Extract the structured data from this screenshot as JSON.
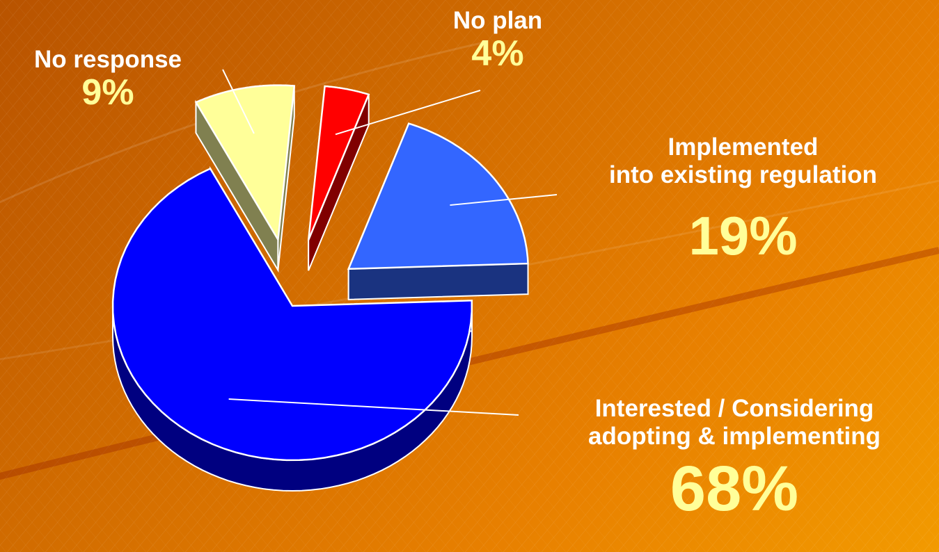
{
  "colors": {
    "background_dark": "#b85300",
    "background_light": "#f29a00",
    "label_text": "#ffffff",
    "percent_text": "#ffff99"
  },
  "chart_data": {
    "type": "pie",
    "style": "3d-exploded",
    "slices": [
      {
        "label": "Interested / Considering adopting & implementing",
        "label_lines": [
          "Interested / Considering",
          "adopting & implementing"
        ],
        "value": 68,
        "display": "68%",
        "color": "#0000ff",
        "side_color": "#000080"
      },
      {
        "label": "Implemented into existing regulation",
        "label_lines": [
          "Implemented",
          "into existing regulation"
        ],
        "value": 19,
        "display": "19%",
        "color": "#3366ff",
        "side_color": "#1a3380"
      },
      {
        "label": "No plan",
        "label_lines": [
          "No plan"
        ],
        "value": 4,
        "display": "4%",
        "color": "#ff0000",
        "side_color": "#800000"
      },
      {
        "label": "No response",
        "label_lines": [
          "No response"
        ],
        "value": 9,
        "display": "9%",
        "color": "#ffff99",
        "side_color": "#808050"
      }
    ]
  }
}
